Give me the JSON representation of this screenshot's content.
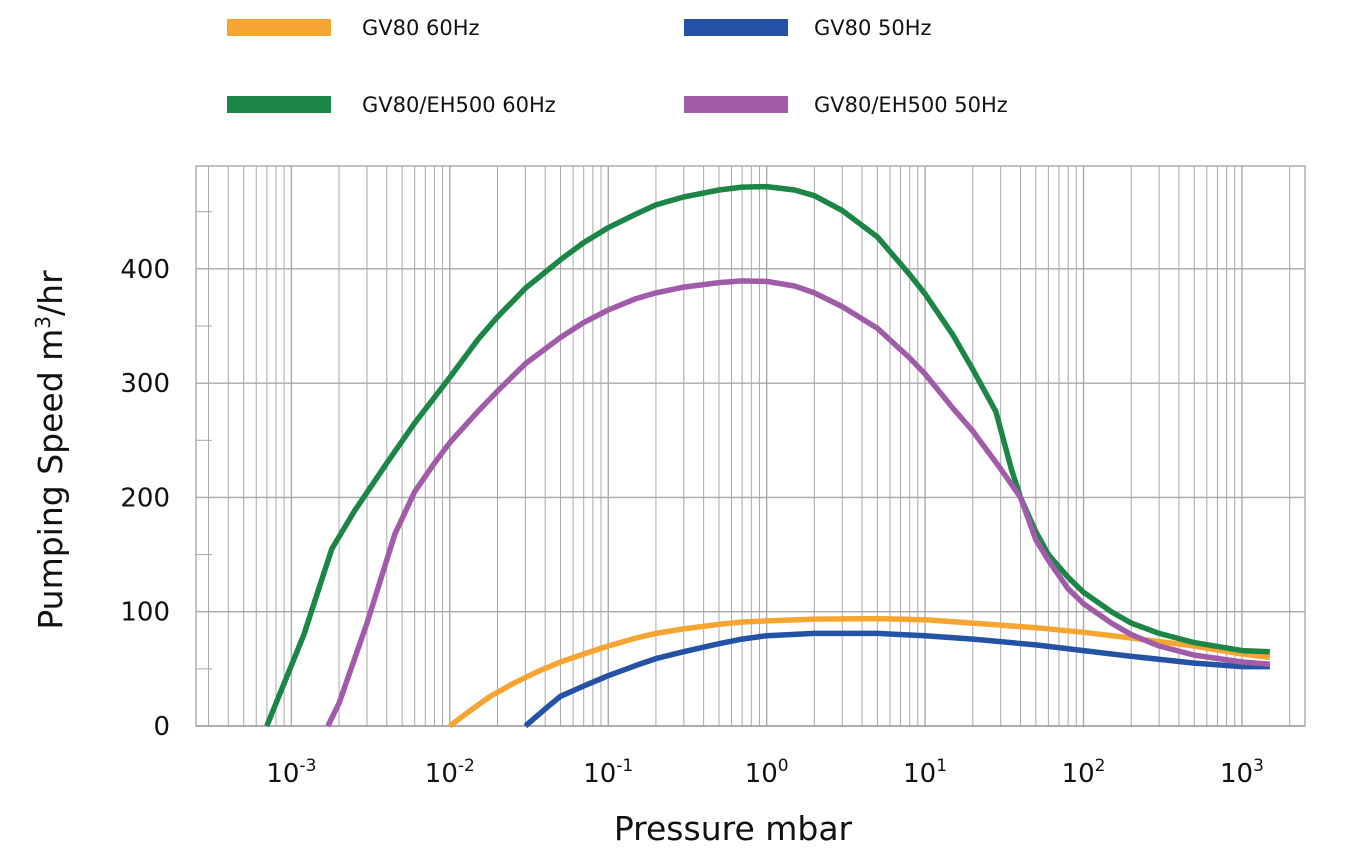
{
  "chart_data": {
    "type": "line",
    "xlabel": "Pressure mbar",
    "ylabel_main": "Pumping Speed m",
    "ylabel_sup": "3",
    "ylabel_end": "/hr",
    "x_scale": "log",
    "xlim": [
      0.00025,
      2500
    ],
    "ylim": [
      0,
      490
    ],
    "x_ticks": [
      {
        "value": 0.001,
        "base": "10",
        "exp": "-3"
      },
      {
        "value": 0.01,
        "base": "10",
        "exp": "-2"
      },
      {
        "value": 0.1,
        "base": "10",
        "exp": "-1"
      },
      {
        "value": 1,
        "base": "10",
        "exp": "0"
      },
      {
        "value": 10,
        "base": "10",
        "exp": "1"
      },
      {
        "value": 100,
        "base": "10",
        "exp": "2"
      },
      {
        "value": 1000,
        "base": "10",
        "exp": "3"
      }
    ],
    "y_ticks": [
      0,
      100,
      200,
      300,
      400
    ],
    "grid": true,
    "legend_position": "top",
    "series": [
      {
        "name": "GV80 60Hz",
        "color": "#F7A532",
        "points": [
          [
            0.01,
            0
          ],
          [
            0.013,
            12
          ],
          [
            0.018,
            26
          ],
          [
            0.025,
            37
          ],
          [
            0.035,
            47
          ],
          [
            0.05,
            56
          ],
          [
            0.07,
            63
          ],
          [
            0.1,
            70
          ],
          [
            0.15,
            77
          ],
          [
            0.2,
            81
          ],
          [
            0.3,
            85
          ],
          [
            0.5,
            89
          ],
          [
            0.7,
            91
          ],
          [
            1,
            92
          ],
          [
            2,
            93.5
          ],
          [
            5,
            94
          ],
          [
            10,
            93
          ],
          [
            20,
            90
          ],
          [
            50,
            86
          ],
          [
            100,
            82
          ],
          [
            200,
            77
          ],
          [
            500,
            70
          ],
          [
            1000,
            63
          ],
          [
            1500,
            60
          ]
        ]
      },
      {
        "name": "GV80 50Hz",
        "color": "#2453A5",
        "points": [
          [
            0.03,
            0
          ],
          [
            0.04,
            15
          ],
          [
            0.05,
            26
          ],
          [
            0.07,
            35
          ],
          [
            0.1,
            44
          ],
          [
            0.15,
            53
          ],
          [
            0.2,
            59
          ],
          [
            0.3,
            65
          ],
          [
            0.5,
            72
          ],
          [
            0.7,
            76
          ],
          [
            1,
            79
          ],
          [
            2,
            81
          ],
          [
            5,
            81
          ],
          [
            10,
            79
          ],
          [
            20,
            76
          ],
          [
            50,
            71
          ],
          [
            100,
            66
          ],
          [
            200,
            61
          ],
          [
            500,
            55
          ],
          [
            1000,
            52
          ],
          [
            1500,
            52
          ]
        ]
      },
      {
        "name": "GV80/EH500 60Hz",
        "color": "#1B8645",
        "points": [
          [
            0.0007,
            0
          ],
          [
            0.0012,
            80
          ],
          [
            0.0018,
            155
          ],
          [
            0.0025,
            188
          ],
          [
            0.004,
            230
          ],
          [
            0.006,
            265
          ],
          [
            0.01,
            305
          ],
          [
            0.015,
            338
          ],
          [
            0.02,
            358
          ],
          [
            0.03,
            383
          ],
          [
            0.05,
            408
          ],
          [
            0.07,
            423
          ],
          [
            0.1,
            436
          ],
          [
            0.15,
            448
          ],
          [
            0.2,
            456
          ],
          [
            0.3,
            463
          ],
          [
            0.5,
            469
          ],
          [
            0.7,
            471.5
          ],
          [
            1,
            472
          ],
          [
            1.5,
            469
          ],
          [
            2,
            464
          ],
          [
            3,
            451
          ],
          [
            5,
            428
          ],
          [
            8,
            395
          ],
          [
            10,
            378
          ],
          [
            15,
            342
          ],
          [
            20,
            312
          ],
          [
            28,
            275
          ],
          [
            35,
            225
          ],
          [
            40,
            200
          ],
          [
            50,
            170
          ],
          [
            60,
            150
          ],
          [
            80,
            130
          ],
          [
            100,
            117
          ],
          [
            150,
            100
          ],
          [
            200,
            90
          ],
          [
            300,
            81
          ],
          [
            500,
            73
          ],
          [
            1000,
            66
          ],
          [
            1500,
            65
          ]
        ]
      },
      {
        "name": "GV80/EH500 50Hz",
        "color": "#A15CA9",
        "points": [
          [
            0.0017,
            0
          ],
          [
            0.002,
            20
          ],
          [
            0.003,
            90
          ],
          [
            0.0045,
            168
          ],
          [
            0.006,
            205
          ],
          [
            0.008,
            230
          ],
          [
            0.01,
            248
          ],
          [
            0.015,
            275
          ],
          [
            0.02,
            293
          ],
          [
            0.03,
            317
          ],
          [
            0.05,
            340
          ],
          [
            0.07,
            353
          ],
          [
            0.1,
            364
          ],
          [
            0.15,
            374
          ],
          [
            0.2,
            379
          ],
          [
            0.3,
            384
          ],
          [
            0.5,
            388
          ],
          [
            0.7,
            389.5
          ],
          [
            1,
            389
          ],
          [
            1.5,
            385
          ],
          [
            2,
            379
          ],
          [
            3,
            367
          ],
          [
            5,
            348
          ],
          [
            8,
            322
          ],
          [
            10,
            308
          ],
          [
            15,
            278
          ],
          [
            20,
            258
          ],
          [
            30,
            225
          ],
          [
            40,
            200
          ],
          [
            50,
            163
          ],
          [
            60,
            145
          ],
          [
            80,
            120
          ],
          [
            100,
            107
          ],
          [
            150,
            90
          ],
          [
            200,
            80
          ],
          [
            300,
            70
          ],
          [
            500,
            62
          ],
          [
            1000,
            56
          ],
          [
            1500,
            54
          ]
        ]
      }
    ]
  }
}
